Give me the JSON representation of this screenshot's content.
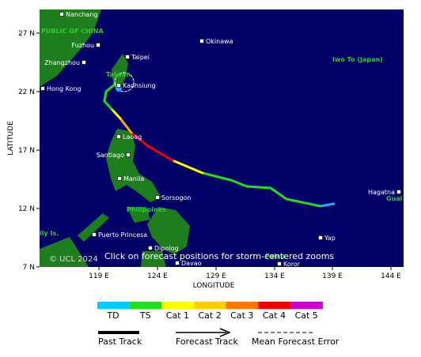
{
  "axes": {
    "x_label": "LONGITUDE",
    "y_label": "LATITUDE",
    "x_ticks": [
      "119 E",
      "124 E",
      "129 E",
      "134 E",
      "139 E",
      "144 E"
    ],
    "y_ticks": [
      "27 N",
      "22 N",
      "17 N",
      "12 N",
      "7 N"
    ]
  },
  "places": [
    "Nanchang",
    "Okinawa",
    "Fuzhou",
    "Taipei",
    "Zhangzhou",
    "Hong Kong",
    "Kaohsiung",
    "Laoag",
    "Santiago",
    "Manila",
    "Sorsogon",
    "Hagatna",
    "Puerto Princesa",
    "Yap",
    "Dipolog",
    "Davao",
    "Koror"
  ],
  "regions": [
    "PUBLIC OF CHINA",
    "Iwo To (Japan)",
    "Taiwan",
    "Philippines",
    "Guai",
    "ily Is.",
    "Palau"
  ],
  "overlay": {
    "copyright": "© UCL 2024",
    "hint": "Click on forecast positions for storm-centered zooms"
  },
  "legend": {
    "categories": [
      "TD",
      "TS",
      "Cat 1",
      "Cat 2",
      "Cat 3",
      "Cat 4",
      "Cat 5"
    ],
    "tracks": [
      "Past Track",
      "Forecast Track",
      "Mean Forecast Error"
    ]
  }
}
